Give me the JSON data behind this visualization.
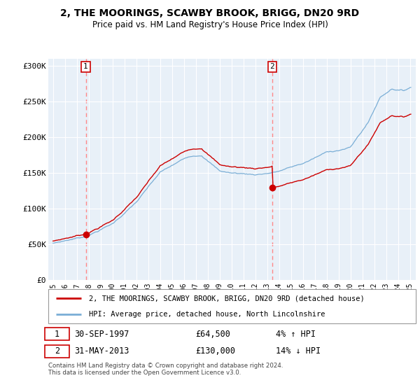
{
  "title": "2, THE MOORINGS, SCAWBY BROOK, BRIGG, DN20 9RD",
  "subtitle": "Price paid vs. HM Land Registry's House Price Index (HPI)",
  "legend_line1": "2, THE MOORINGS, SCAWBY BROOK, BRIGG, DN20 9RD (detached house)",
  "legend_line2": "HPI: Average price, detached house, North Lincolnshire",
  "sale1_date": "30-SEP-1997",
  "sale1_price": "£64,500",
  "sale1_hpi": "4% ↑ HPI",
  "sale2_date": "31-MAY-2013",
  "sale2_price": "£130,000",
  "sale2_hpi": "14% ↓ HPI",
  "footer": "Contains HM Land Registry data © Crown copyright and database right 2024.\nThis data is licensed under the Open Government Licence v3.0.",
  "sale_color": "#cc0000",
  "hpi_color": "#7aaed6",
  "vline_color": "#ff8888",
  "marker1_x": 1997.75,
  "marker1_y": 64500,
  "marker2_x": 2013.42,
  "marker2_y": 130000,
  "vline1_x": 1997.75,
  "vline2_x": 2013.42,
  "ylim": [
    0,
    310000
  ],
  "xlim": [
    1994.6,
    2025.5
  ],
  "yticks": [
    0,
    50000,
    100000,
    150000,
    200000,
    250000,
    300000
  ],
  "ytick_labels": [
    "£0",
    "£50K",
    "£100K",
    "£150K",
    "£200K",
    "£250K",
    "£300K"
  ],
  "xticks": [
    1995,
    1996,
    1997,
    1998,
    1999,
    2000,
    2001,
    2002,
    2003,
    2004,
    2005,
    2006,
    2007,
    2008,
    2009,
    2010,
    2011,
    2012,
    2013,
    2014,
    2015,
    2016,
    2017,
    2018,
    2019,
    2020,
    2021,
    2022,
    2023,
    2024,
    2025
  ],
  "bg_color": "#e8f0f8",
  "fig_width": 6.0,
  "fig_height": 5.6,
  "dpi": 100
}
